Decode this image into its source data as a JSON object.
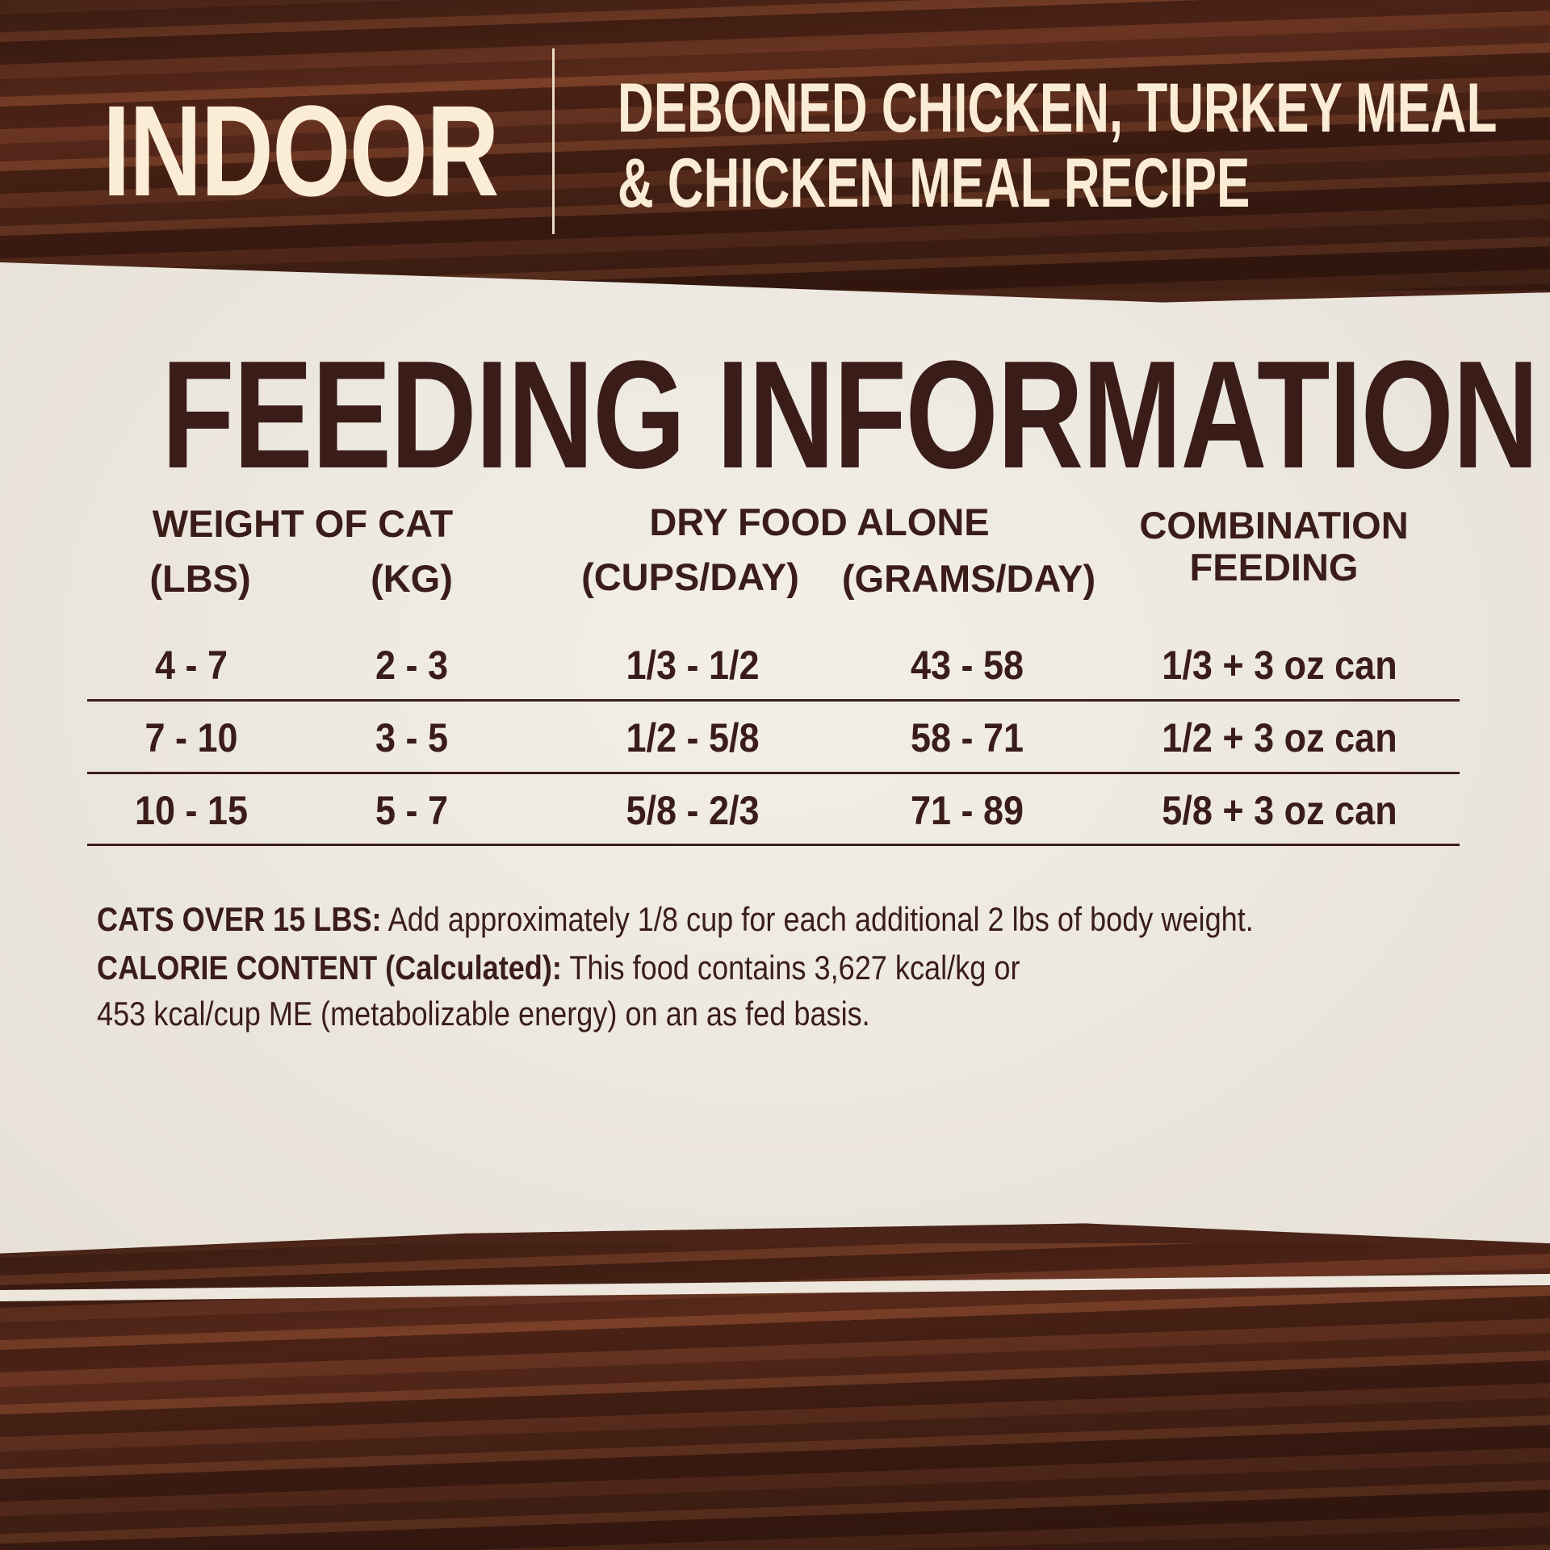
{
  "header": {
    "line_name": "INDOOR",
    "recipe_line1": "DEBONED CHICKEN, TURKEY MEAL",
    "recipe_line2": "& CHICKEN MEAL RECIPE"
  },
  "title": "FEEDING INFORMATION",
  "table": {
    "headers": {
      "weight": "WEIGHT OF CAT",
      "lbs": "(LBS)",
      "kg": "(KG)",
      "dry": "DRY FOOD ALONE",
      "cups": "(CUPS/DAY)",
      "grams": "(GRAMS/DAY)",
      "combo1": "COMBINATION",
      "combo2": "FEEDING"
    },
    "rows": [
      {
        "lbs": "4 - 7",
        "kg": "2 - 3",
        "cups": "1/3 - 1/2",
        "grams": "43 - 58",
        "combo": "1/3 + 3 oz can"
      },
      {
        "lbs": "7 - 10",
        "kg": "3 - 5",
        "cups": "1/2 - 5/8",
        "grams": "58 - 71",
        "combo": "1/2 + 3 oz can"
      },
      {
        "lbs": "10 - 15",
        "kg": "5 - 7",
        "cups": "5/8 - 2/3",
        "grams": "71 - 89",
        "combo": "5/8 + 3 oz can"
      }
    ]
  },
  "notes": {
    "over_label": "CATS OVER 15 LBS:",
    "over_text": " Add approximately 1/8 cup for each additional 2 lbs of body weight.",
    "cal_label": "CALORIE CONTENT (Calculated):",
    "cal_text": " This food contains 3,627 kcal/kg or",
    "cal_text2": "453 kcal/cup ME (metabolizable energy) on an as fed basis."
  },
  "colors": {
    "text": "#3a1d19",
    "header_text": "#fbecd6",
    "paper": "#efeae2",
    "wood": "#5a2c1c"
  }
}
